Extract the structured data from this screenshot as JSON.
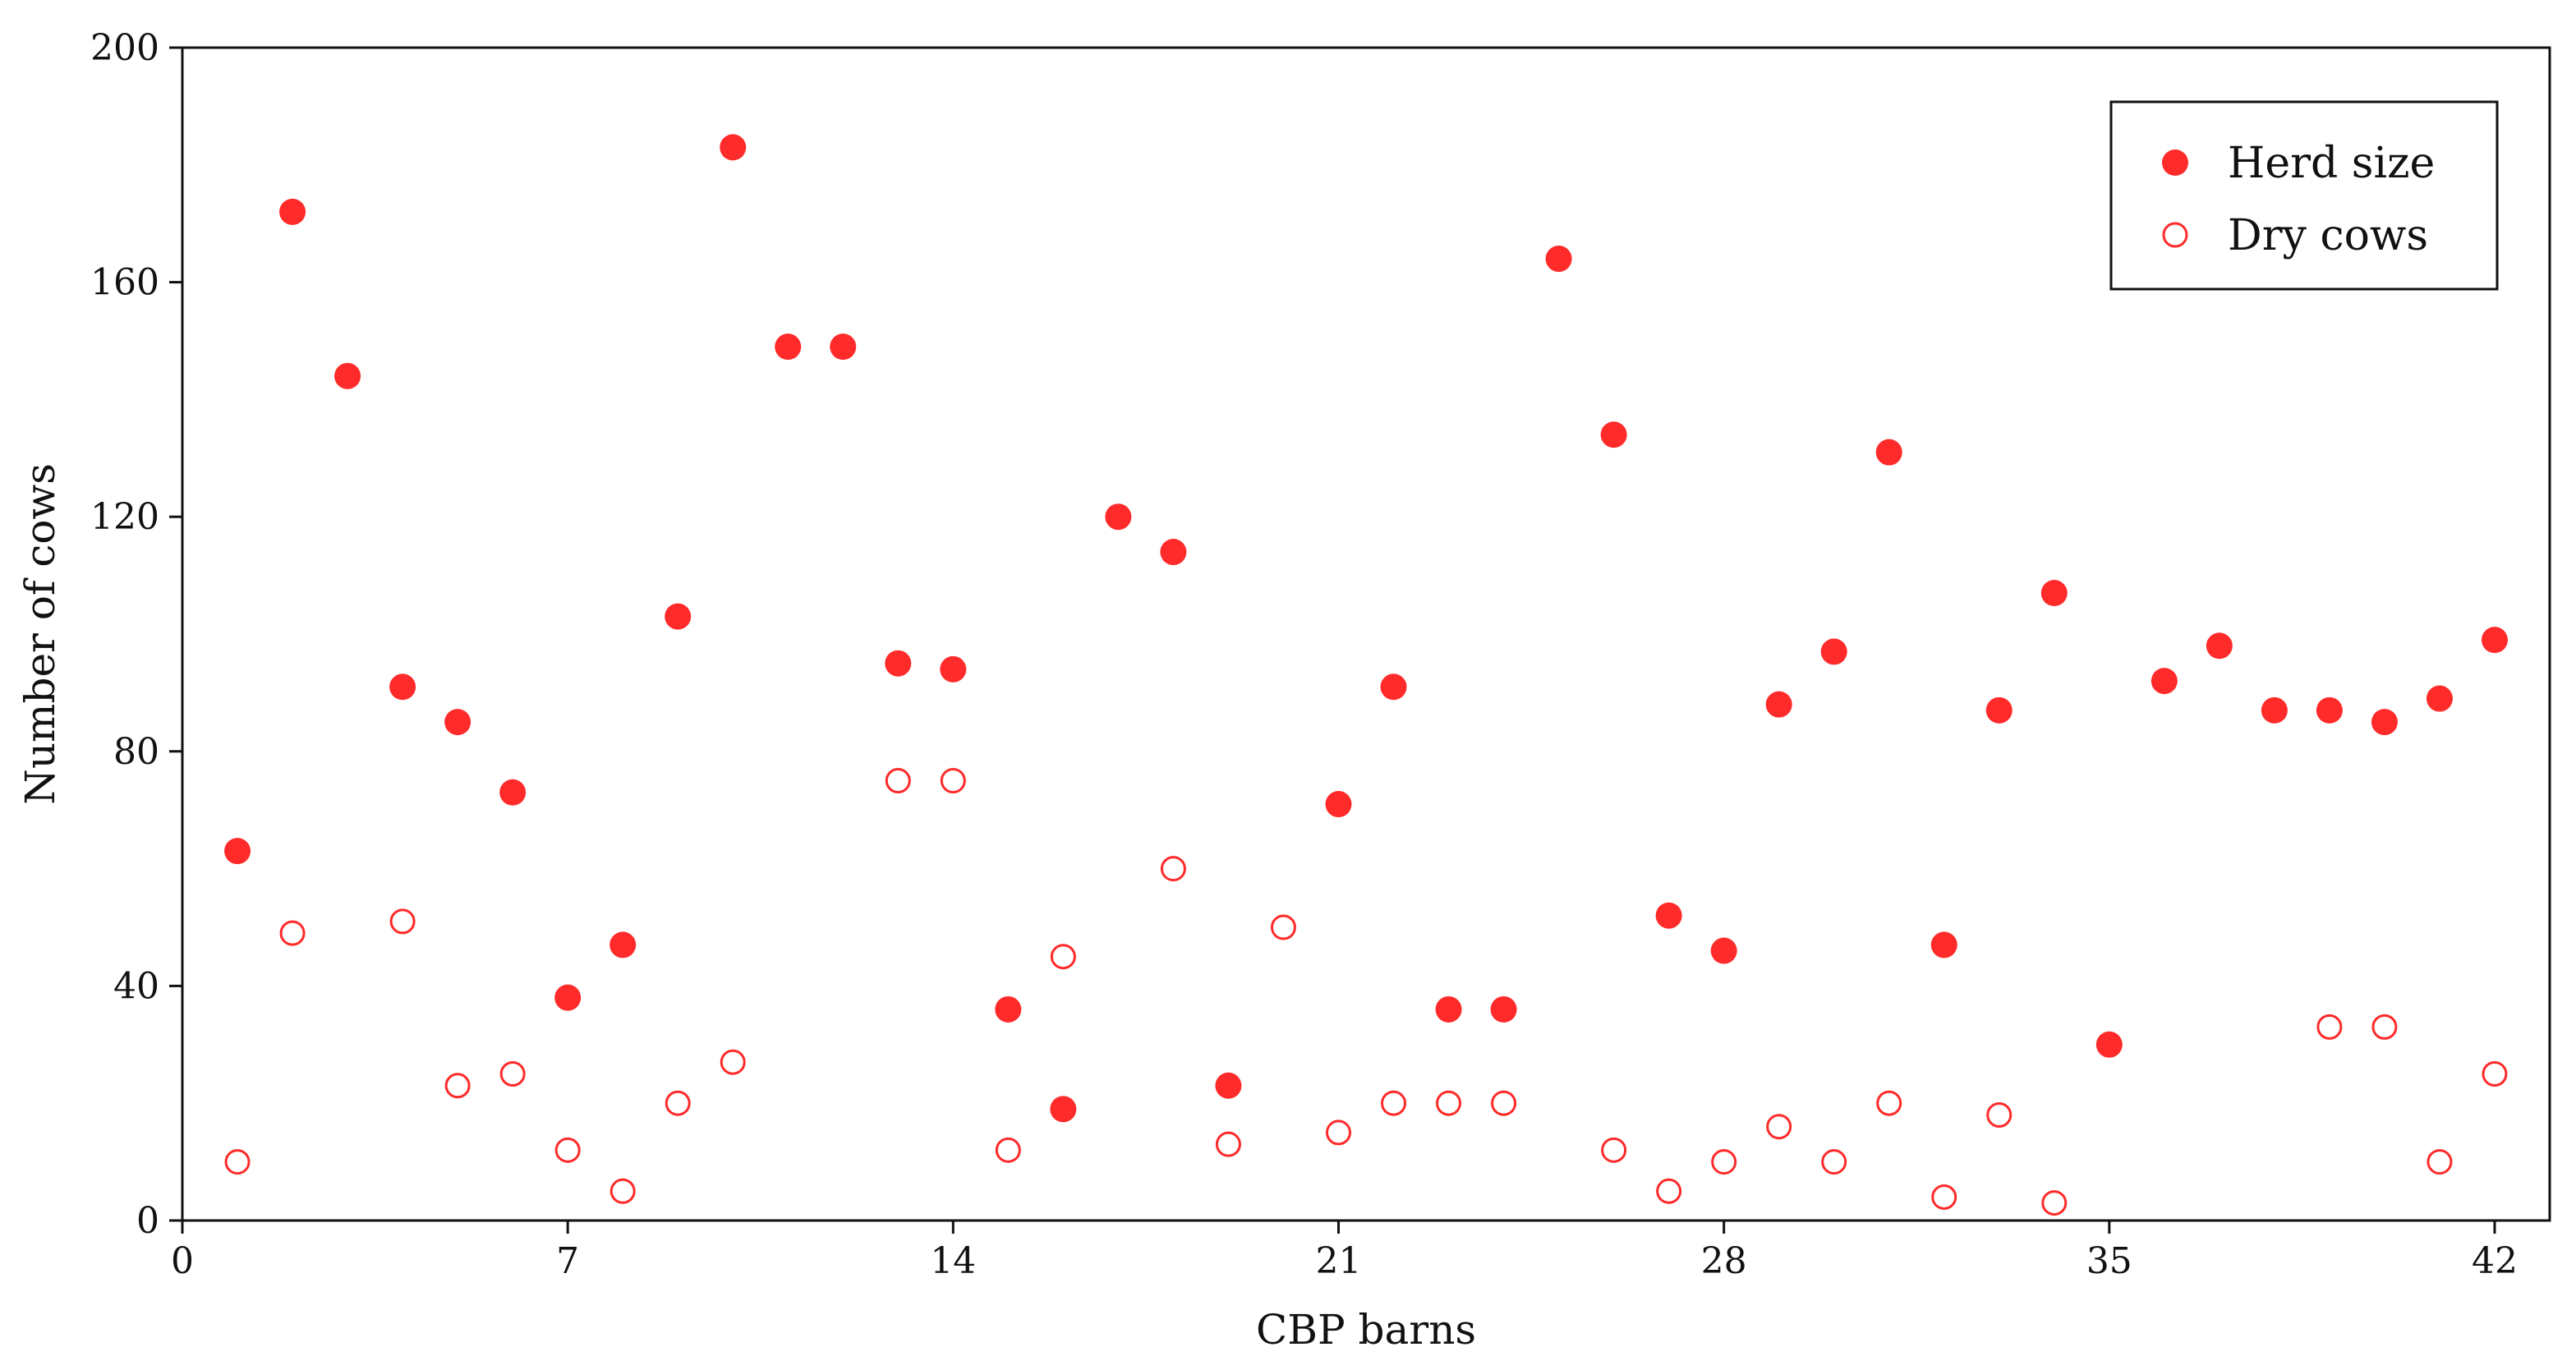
{
  "chart_data": {
    "type": "scatter",
    "title": "",
    "xlabel": "CBP barns",
    "ylabel": "Number of cows",
    "xlim": [
      0,
      43
    ],
    "ylim": [
      0,
      200
    ],
    "xticks": [
      0,
      7,
      14,
      21,
      28,
      35,
      42
    ],
    "yticks": [
      0,
      40,
      80,
      120,
      160,
      200
    ],
    "grid": false,
    "legend_position": "top-right",
    "colors": {
      "marker": "#ff2a2a",
      "axis": "#111111"
    },
    "x": [
      1,
      2,
      3,
      4,
      5,
      6,
      7,
      8,
      9,
      10,
      11,
      12,
      13,
      14,
      15,
      16,
      17,
      18,
      19,
      20,
      21,
      22,
      23,
      24,
      25,
      26,
      27,
      28,
      29,
      30,
      31,
      32,
      33,
      34,
      35,
      36,
      37,
      38,
      39,
      40,
      41,
      42
    ],
    "series": [
      {
        "name": "Herd size",
        "marker": "filled-circle",
        "values": [
          63,
          172,
          144,
          91,
          85,
          73,
          38,
          47,
          103,
          183,
          149,
          149,
          95,
          94,
          36,
          19,
          120,
          114,
          23,
          null,
          71,
          91,
          36,
          36,
          164,
          134,
          52,
          46,
          88,
          97,
          131,
          47,
          87,
          107,
          30,
          92,
          98,
          87,
          87,
          85,
          89,
          99
        ]
      },
      {
        "name": "Dry cows",
        "marker": "open-circle",
        "values": [
          10,
          49,
          null,
          51,
          23,
          25,
          12,
          5,
          20,
          27,
          null,
          null,
          75,
          75,
          12,
          45,
          null,
          60,
          13,
          50,
          15,
          20,
          20,
          20,
          null,
          12,
          5,
          10,
          16,
          10,
          20,
          4,
          18,
          3,
          null,
          null,
          null,
          null,
          33,
          33,
          10,
          25
        ]
      }
    ]
  },
  "legend": {
    "items": [
      {
        "label": "Herd size",
        "marker": "filled-circle"
      },
      {
        "label": "Dry cows",
        "marker": "open-circle"
      }
    ]
  }
}
